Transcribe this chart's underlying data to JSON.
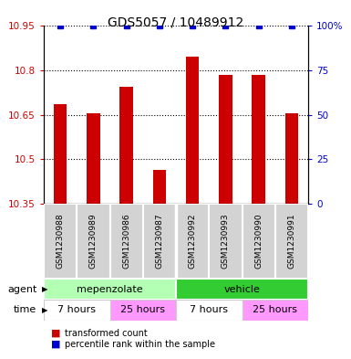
{
  "title": "GDS5057 / 10489912",
  "samples": [
    "GSM1230988",
    "GSM1230989",
    "GSM1230986",
    "GSM1230987",
    "GSM1230992",
    "GSM1230993",
    "GSM1230990",
    "GSM1230991"
  ],
  "red_values": [
    10.685,
    10.655,
    10.745,
    10.465,
    10.845,
    10.785,
    10.785,
    10.655
  ],
  "blue_values": [
    100,
    100,
    100,
    100,
    100,
    100,
    100,
    100
  ],
  "ylim_left": [
    10.35,
    10.95
  ],
  "ylim_right": [
    0,
    100
  ],
  "yticks_left": [
    10.35,
    10.5,
    10.65,
    10.8,
    10.95
  ],
  "yticks_right": [
    0,
    25,
    50,
    75,
    100
  ],
  "ytick_labels_right": [
    "0",
    "25",
    "50",
    "75",
    "100%"
  ],
  "red_color": "#cc0000",
  "blue_color": "#0000cc",
  "bar_width": 0.4,
  "agent_groups": [
    {
      "label": "mepenzolate",
      "color": "#b3ffb3",
      "start": 0,
      "end": 4
    },
    {
      "label": "vehicle",
      "color": "#33cc33",
      "start": 4,
      "end": 8
    }
  ],
  "time_groups": [
    {
      "label": "7 hours",
      "color": "#ffffff",
      "start": 0,
      "end": 2
    },
    {
      "label": "25 hours",
      "color": "#ff99ff",
      "start": 2,
      "end": 4
    },
    {
      "label": "7 hours",
      "color": "#ffffff",
      "start": 4,
      "end": 6
    },
    {
      "label": "25 hours",
      "color": "#ff99ff",
      "start": 6,
      "end": 8
    }
  ],
  "legend_red_label": "transformed count",
  "legend_blue_label": "percentile rank within the sample",
  "agent_label": "agent",
  "time_label": "time",
  "background_color": "#ffffff",
  "plot_bg_color": "#ffffff"
}
